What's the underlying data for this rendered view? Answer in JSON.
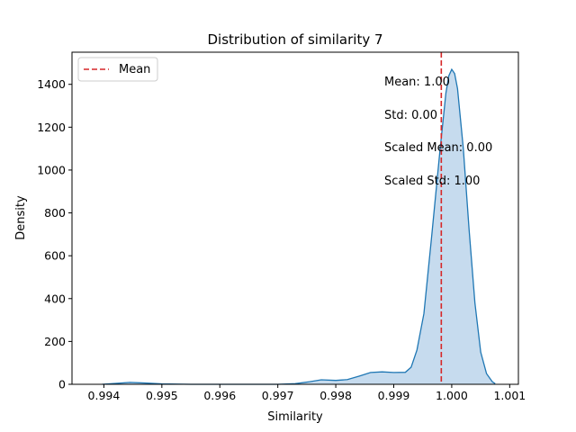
{
  "chart_data": {
    "type": "area",
    "title": "Distribution of similarity 7",
    "xlabel": "Similarity",
    "ylabel": "Density",
    "xlim": [
      0.99345,
      1.00115
    ],
    "ylim": [
      0,
      1550
    ],
    "xticks": [
      0.994,
      0.995,
      0.996,
      0.997,
      0.998,
      0.999,
      1.0,
      1.001
    ],
    "xtick_labels": [
      "0.994",
      "0.995",
      "0.996",
      "0.997",
      "0.998",
      "0.999",
      "1.000",
      "1.001"
    ],
    "yticks": [
      0,
      200,
      400,
      600,
      800,
      1000,
      1200,
      1400
    ],
    "ytick_labels": [
      "0",
      "200",
      "400",
      "600",
      "800",
      "1000",
      "1200",
      "1400"
    ],
    "grid": false,
    "legend": {
      "position": "top-left",
      "entries": [
        {
          "label": "Mean",
          "color": "#d62728",
          "style": "dashed"
        }
      ]
    },
    "series": [
      {
        "name": "",
        "color": "#1f77b4",
        "fill": "#c6dbee",
        "x": [
          0.99397,
          0.9942,
          0.99445,
          0.9947,
          0.995,
          0.9955,
          0.996,
          0.9965,
          0.997,
          0.9973,
          0.99755,
          0.99775,
          0.998,
          0.9982,
          0.9984,
          0.9986,
          0.9988,
          0.999,
          0.9992,
          0.9993,
          0.9994,
          0.99952,
          0.99965,
          0.9998,
          0.9999,
          0.99995,
          1.0,
          1.00005,
          1.0001,
          1.0002,
          1.0003,
          1.0004,
          1.0005,
          1.0006,
          1.0007,
          1.00075
        ],
        "y": [
          0,
          4,
          9,
          6,
          2,
          0,
          0,
          0,
          0,
          3,
          12,
          21,
          18,
          22,
          38,
          55,
          58,
          55,
          56,
          80,
          160,
          330,
          680,
          1100,
          1360,
          1440,
          1470,
          1450,
          1380,
          1100,
          720,
          380,
          150,
          50,
          12,
          3
        ]
      }
    ],
    "mean_line": {
      "x": 0.99982,
      "color": "#d62728"
    },
    "annotations": [
      "Mean: 1.00",
      "Std: 0.00",
      "Scaled Mean: 0.00",
      "Scaled Std: 1.00"
    ]
  }
}
